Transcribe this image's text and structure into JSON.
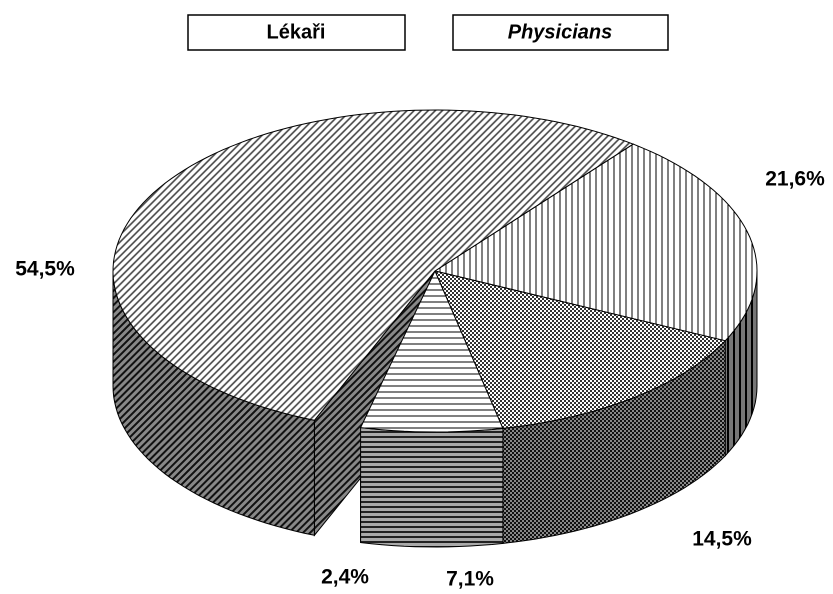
{
  "chart_data": {
    "type": "pie3d",
    "title": "Lékaři",
    "subtitle": "Physicians",
    "categories": [
      null,
      null,
      null,
      null,
      null
    ],
    "values": [
      21.6,
      14.5,
      7.1,
      2.4,
      54.5
    ],
    "value_labels": [
      "21,6%",
      "14,5%",
      "7,1%",
      "2,4%",
      "54,5%"
    ]
  }
}
